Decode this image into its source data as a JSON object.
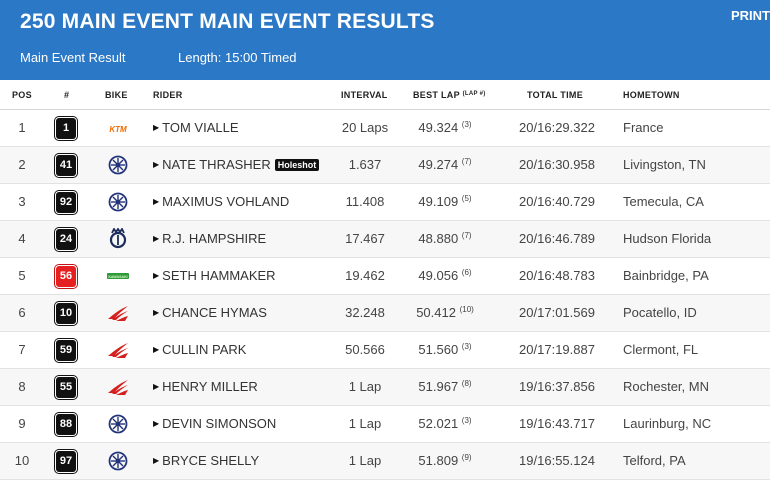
{
  "header": {
    "title": "250 MAIN EVENT MAIN EVENT RESULTS",
    "print_label": "PRINT",
    "subtitle_left": "Main Event Result",
    "subtitle_right": "Length: 15:00 Timed",
    "bg_color": "#2a78c6"
  },
  "columns": {
    "pos": "POS",
    "num": "#",
    "bike": "BIKE",
    "rider": "RIDER",
    "interval": "INTERVAL",
    "best_lap": "BEST LAP",
    "best_lap_sup": "(LAP #)",
    "total_time": "TOTAL TIME",
    "hometown": "HOMETOWN"
  },
  "rows": [
    {
      "pos": "1",
      "num": "1",
      "bike": "ktm-logo-icon",
      "rider": "TOM VIALLE",
      "badge": "",
      "interval": "20 Laps",
      "best": "49.324",
      "lap": "(3)",
      "total": "20/16:29.322",
      "hometown": "France"
    },
    {
      "pos": "2",
      "num": "41",
      "bike": "yamaha-logo-icon",
      "rider": "NATE THRASHER",
      "badge": "Holeshot",
      "interval": "1.637",
      "best": "49.274",
      "lap": "(7)",
      "total": "20/16:30.958",
      "hometown": "Livingston, TN"
    },
    {
      "pos": "3",
      "num": "92",
      "bike": "yamaha-logo-icon",
      "rider": "MAXIMUS VOHLAND",
      "badge": "",
      "interval": "11.408",
      "best": "49.109",
      "lap": "(5)",
      "total": "20/16:40.729",
      "hometown": "Temecula, CA"
    },
    {
      "pos": "4",
      "num": "24",
      "bike": "husqvarna-logo-icon",
      "rider": "R.J. HAMPSHIRE",
      "badge": "",
      "interval": "17.467",
      "best": "48.880",
      "lap": "(7)",
      "total": "20/16:46.789",
      "hometown": "Hudson Florida"
    },
    {
      "pos": "5",
      "num": "56",
      "bike": "kawasaki-logo-icon",
      "rider": "SETH HAMMAKER",
      "badge": "",
      "interval": "19.462",
      "best": "49.056",
      "lap": "(6)",
      "total": "20/16:48.783",
      "hometown": "Bainbridge, PA"
    },
    {
      "pos": "6",
      "num": "10",
      "bike": "honda-logo-icon",
      "rider": "CHANCE HYMAS",
      "badge": "",
      "interval": "32.248",
      "best": "50.412",
      "lap": "(10)",
      "total": "20/17:01.569",
      "hometown": "Pocatello, ID"
    },
    {
      "pos": "7",
      "num": "59",
      "bike": "honda-logo-icon",
      "rider": "CULLIN PARK",
      "badge": "",
      "interval": "50.566",
      "best": "51.560",
      "lap": "(3)",
      "total": "20/17:19.887",
      "hometown": "Clermont, FL"
    },
    {
      "pos": "8",
      "num": "55",
      "bike": "honda-logo-icon",
      "rider": "HENRY MILLER",
      "badge": "",
      "interval": "1 Lap",
      "best": "51.967",
      "lap": "(8)",
      "total": "19/16:37.856",
      "hometown": "Rochester, MN"
    },
    {
      "pos": "9",
      "num": "88",
      "bike": "yamaha-logo-icon",
      "rider": "DEVIN SIMONSON",
      "badge": "",
      "interval": "1 Lap",
      "best": "52.021",
      "lap": "(3)",
      "total": "19/16:43.717",
      "hometown": "Laurinburg, NC"
    },
    {
      "pos": "10",
      "num": "97",
      "bike": "yamaha-logo-icon",
      "rider": "BRYCE SHELLY",
      "badge": "",
      "interval": "1 Lap",
      "best": "51.809",
      "lap": "(9)",
      "total": "19/16:55.124",
      "hometown": "Telford, PA"
    }
  ]
}
